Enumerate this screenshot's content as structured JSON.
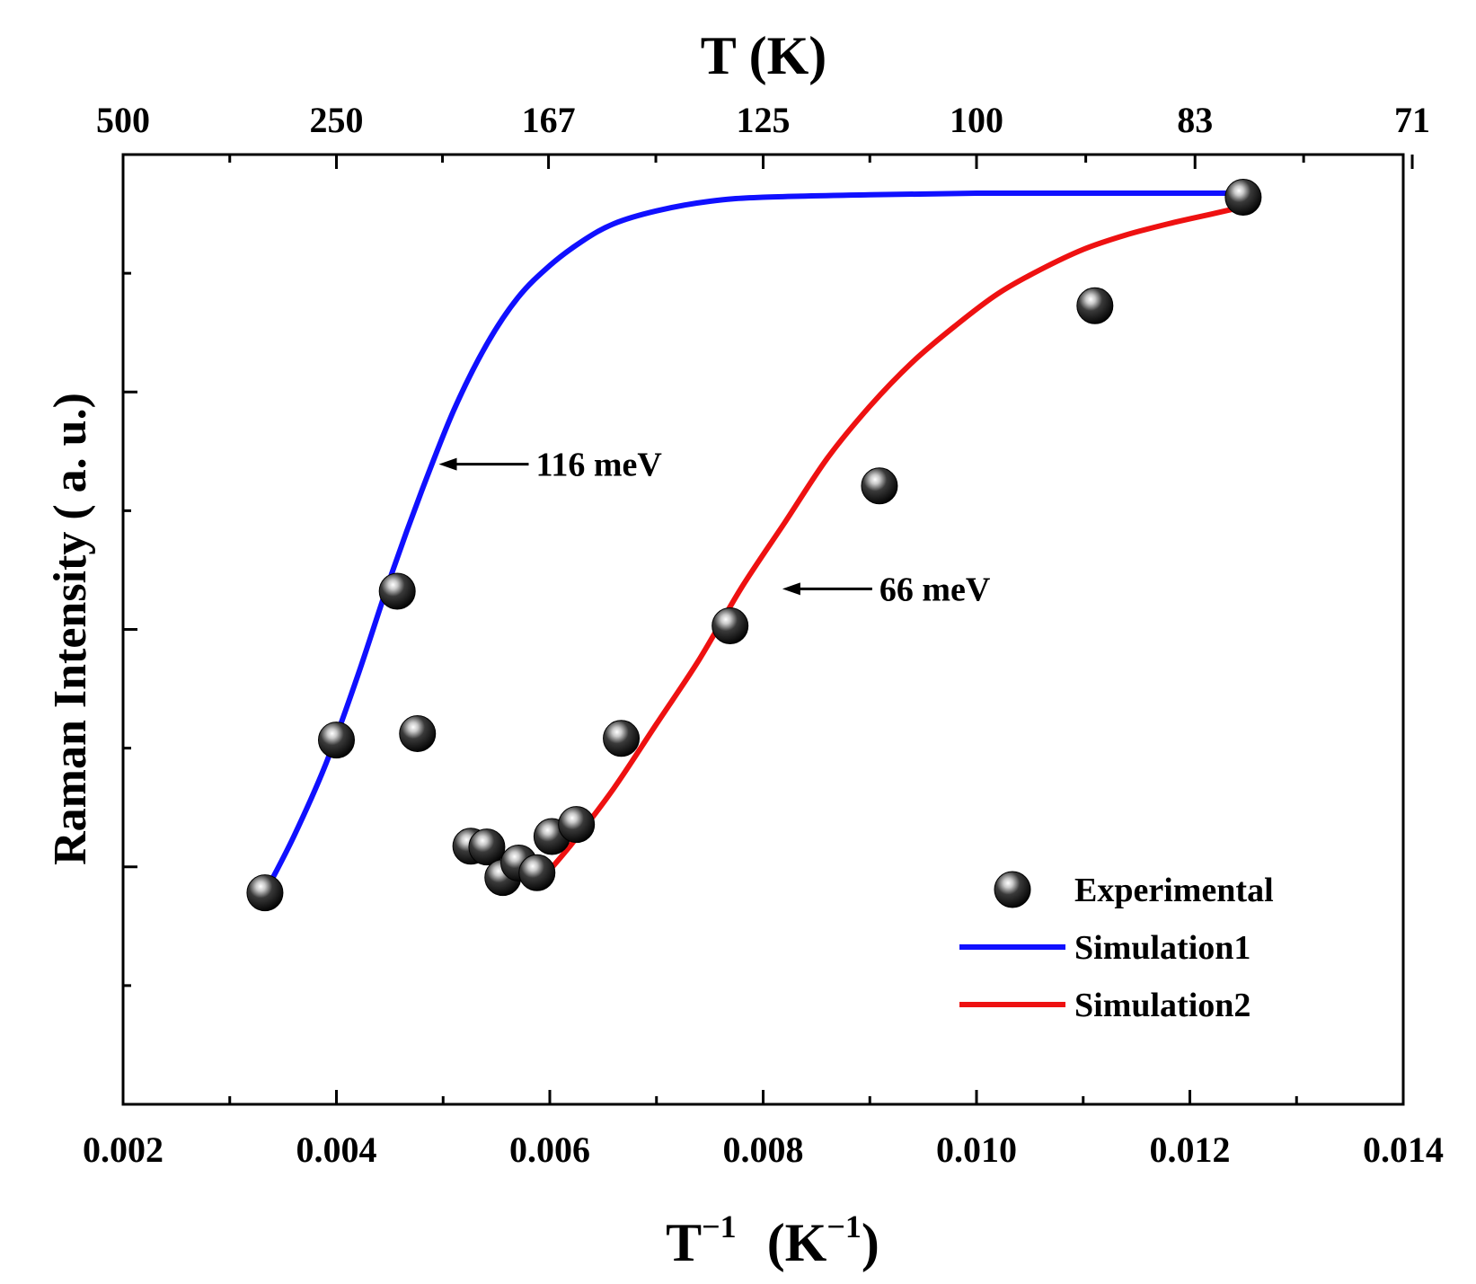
{
  "chart_data": {
    "type": "scatter",
    "title": "",
    "xlabel_main": "T",
    "xlabel_sup": "−1",
    "xlabel_unit_main": "(K",
    "xlabel_unit_sup": "−1",
    "xlabel_unit_close": ")",
    "ylabel": "Raman Intensity ( a. u.)",
    "top_axis_label": "T (K)",
    "xlim": [
      0.002,
      0.014
    ],
    "ylim": [
      0,
      1
    ],
    "x_ticks": [
      0.002,
      0.004,
      0.006,
      0.008,
      0.01,
      0.012,
      0.014
    ],
    "x_tick_labels": [
      "0.002",
      "0.004",
      "0.006",
      "0.008",
      "0.010",
      "0.012",
      "0.014"
    ],
    "top_ticks": [
      500,
      250,
      167,
      125,
      100,
      83,
      71
    ],
    "top_tick_labels": [
      "500",
      "250",
      "167",
      "125",
      "100",
      "83",
      "71"
    ],
    "y_tick_labels_visible": false,
    "legend_position": "bottom-right",
    "series": [
      {
        "name": "Experimental",
        "kind": "points",
        "color": "#111111",
        "x": [
          0.00333,
          0.004,
          0.00457,
          0.00476,
          0.00526,
          0.00541,
          0.00556,
          0.00571,
          0.00588,
          0.00602,
          0.00625,
          0.00667,
          0.00769,
          0.00909,
          0.01111,
          0.0125
        ],
        "y": [
          0.13,
          0.32,
          0.505,
          0.328,
          0.188,
          0.187,
          0.149,
          0.167,
          0.155,
          0.2,
          0.215,
          0.322,
          0.462,
          0.636,
          0.86,
          0.995
        ]
      },
      {
        "name": "Simulation1",
        "kind": "line",
        "color": "#1010ff",
        "x": [
          0.00333,
          0.0036,
          0.0039,
          0.0042,
          0.0045,
          0.0048,
          0.0051,
          0.0054,
          0.0057,
          0.006,
          0.0063,
          0.0066,
          0.007,
          0.0075,
          0.008,
          0.009,
          0.01,
          0.011,
          0.012,
          0.0125
        ],
        "y": [
          0.13,
          0.2,
          0.29,
          0.4,
          0.52,
          0.63,
          0.73,
          0.81,
          0.87,
          0.91,
          0.94,
          0.962,
          0.978,
          0.99,
          0.995,
          0.998,
          1.0,
          1.0,
          1.0,
          1.0
        ]
      },
      {
        "name": "Simulation2",
        "kind": "line",
        "color": "#ee1111",
        "x": [
          0.00588,
          0.0062,
          0.0066,
          0.007,
          0.0074,
          0.0078,
          0.0082,
          0.0086,
          0.009,
          0.0094,
          0.0098,
          0.0102,
          0.0106,
          0.011,
          0.0114,
          0.0118,
          0.0122,
          0.0125
        ],
        "y": [
          0.14,
          0.19,
          0.26,
          0.34,
          0.42,
          0.51,
          0.59,
          0.67,
          0.735,
          0.79,
          0.835,
          0.875,
          0.905,
          0.93,
          0.948,
          0.962,
          0.974,
          0.983
        ]
      }
    ],
    "annotations": [
      {
        "text": "116 meV",
        "arrow_to_x": 0.00496,
        "arrow_to_y": 0.663
      },
      {
        "text": "66 meV",
        "arrow_to_x": 0.00818,
        "arrow_to_y": 0.508
      }
    ]
  }
}
